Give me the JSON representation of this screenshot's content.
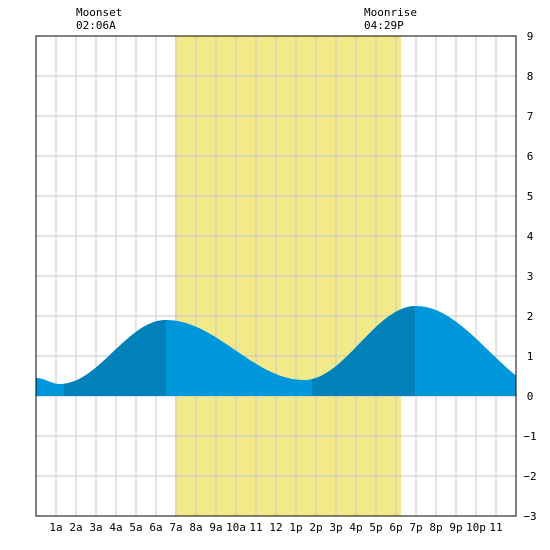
{
  "moon": {
    "moonset_label": "Moonset",
    "moonset_time": "02:06A",
    "moonrise_label": "Moonrise",
    "moonrise_time": "04:29P"
  },
  "colors": {
    "daylight": "#f2ea8a",
    "tide_light": "#0096dc",
    "tide_dark": "#0081b9",
    "grid": "#c8c8c8",
    "frame": "#000000"
  },
  "chart_data": {
    "type": "area",
    "x_unit": "hour",
    "xlim": [
      0,
      24
    ],
    "ylim": [
      -3,
      9
    ],
    "grid": true,
    "x_tick_labels": [
      {
        "x": 1,
        "label": "1a"
      },
      {
        "x": 2,
        "label": "2a"
      },
      {
        "x": 3,
        "label": "3a"
      },
      {
        "x": 4,
        "label": "4a"
      },
      {
        "x": 5,
        "label": "5a"
      },
      {
        "x": 6,
        "label": "6a"
      },
      {
        "x": 7,
        "label": "7a"
      },
      {
        "x": 8,
        "label": "8a"
      },
      {
        "x": 9,
        "label": "9a"
      },
      {
        "x": 10,
        "label": "10a"
      },
      {
        "x": 11,
        "label": "11"
      },
      {
        "x": 12,
        "label": "12"
      },
      {
        "x": 13,
        "label": "1p"
      },
      {
        "x": 14,
        "label": "2p"
      },
      {
        "x": 15,
        "label": "3p"
      },
      {
        "x": 16,
        "label": "4p"
      },
      {
        "x": 17,
        "label": "5p"
      },
      {
        "x": 18,
        "label": "6p"
      },
      {
        "x": 19,
        "label": "7p"
      },
      {
        "x": 20,
        "label": "8p"
      },
      {
        "x": 21,
        "label": "9p"
      },
      {
        "x": 22,
        "label": "10p"
      },
      {
        "x": 23,
        "label": "11"
      }
    ],
    "y_ticks": [
      -3,
      -2,
      -1,
      0,
      1,
      2,
      3,
      4,
      5,
      6,
      7,
      8,
      9
    ],
    "daylight": {
      "start": 6.95,
      "end": 18.25
    },
    "moonset_hour": 2.1,
    "moonrise_hour": 16.48,
    "tide_extremes": [
      {
        "hour": 1.2,
        "height": 0.3
      },
      {
        "hour": 6.5,
        "height": 1.9
      },
      {
        "hour": 13.4,
        "height": 0.4
      },
      {
        "hour": 19.0,
        "height": 2.25
      },
      {
        "hour": 26.3,
        "height": 0.0
      }
    ],
    "start_height": 0.45,
    "dark_bands": [
      {
        "start": 1.4,
        "end": 6.5
      },
      {
        "start": 13.8,
        "end": 18.95
      }
    ]
  }
}
